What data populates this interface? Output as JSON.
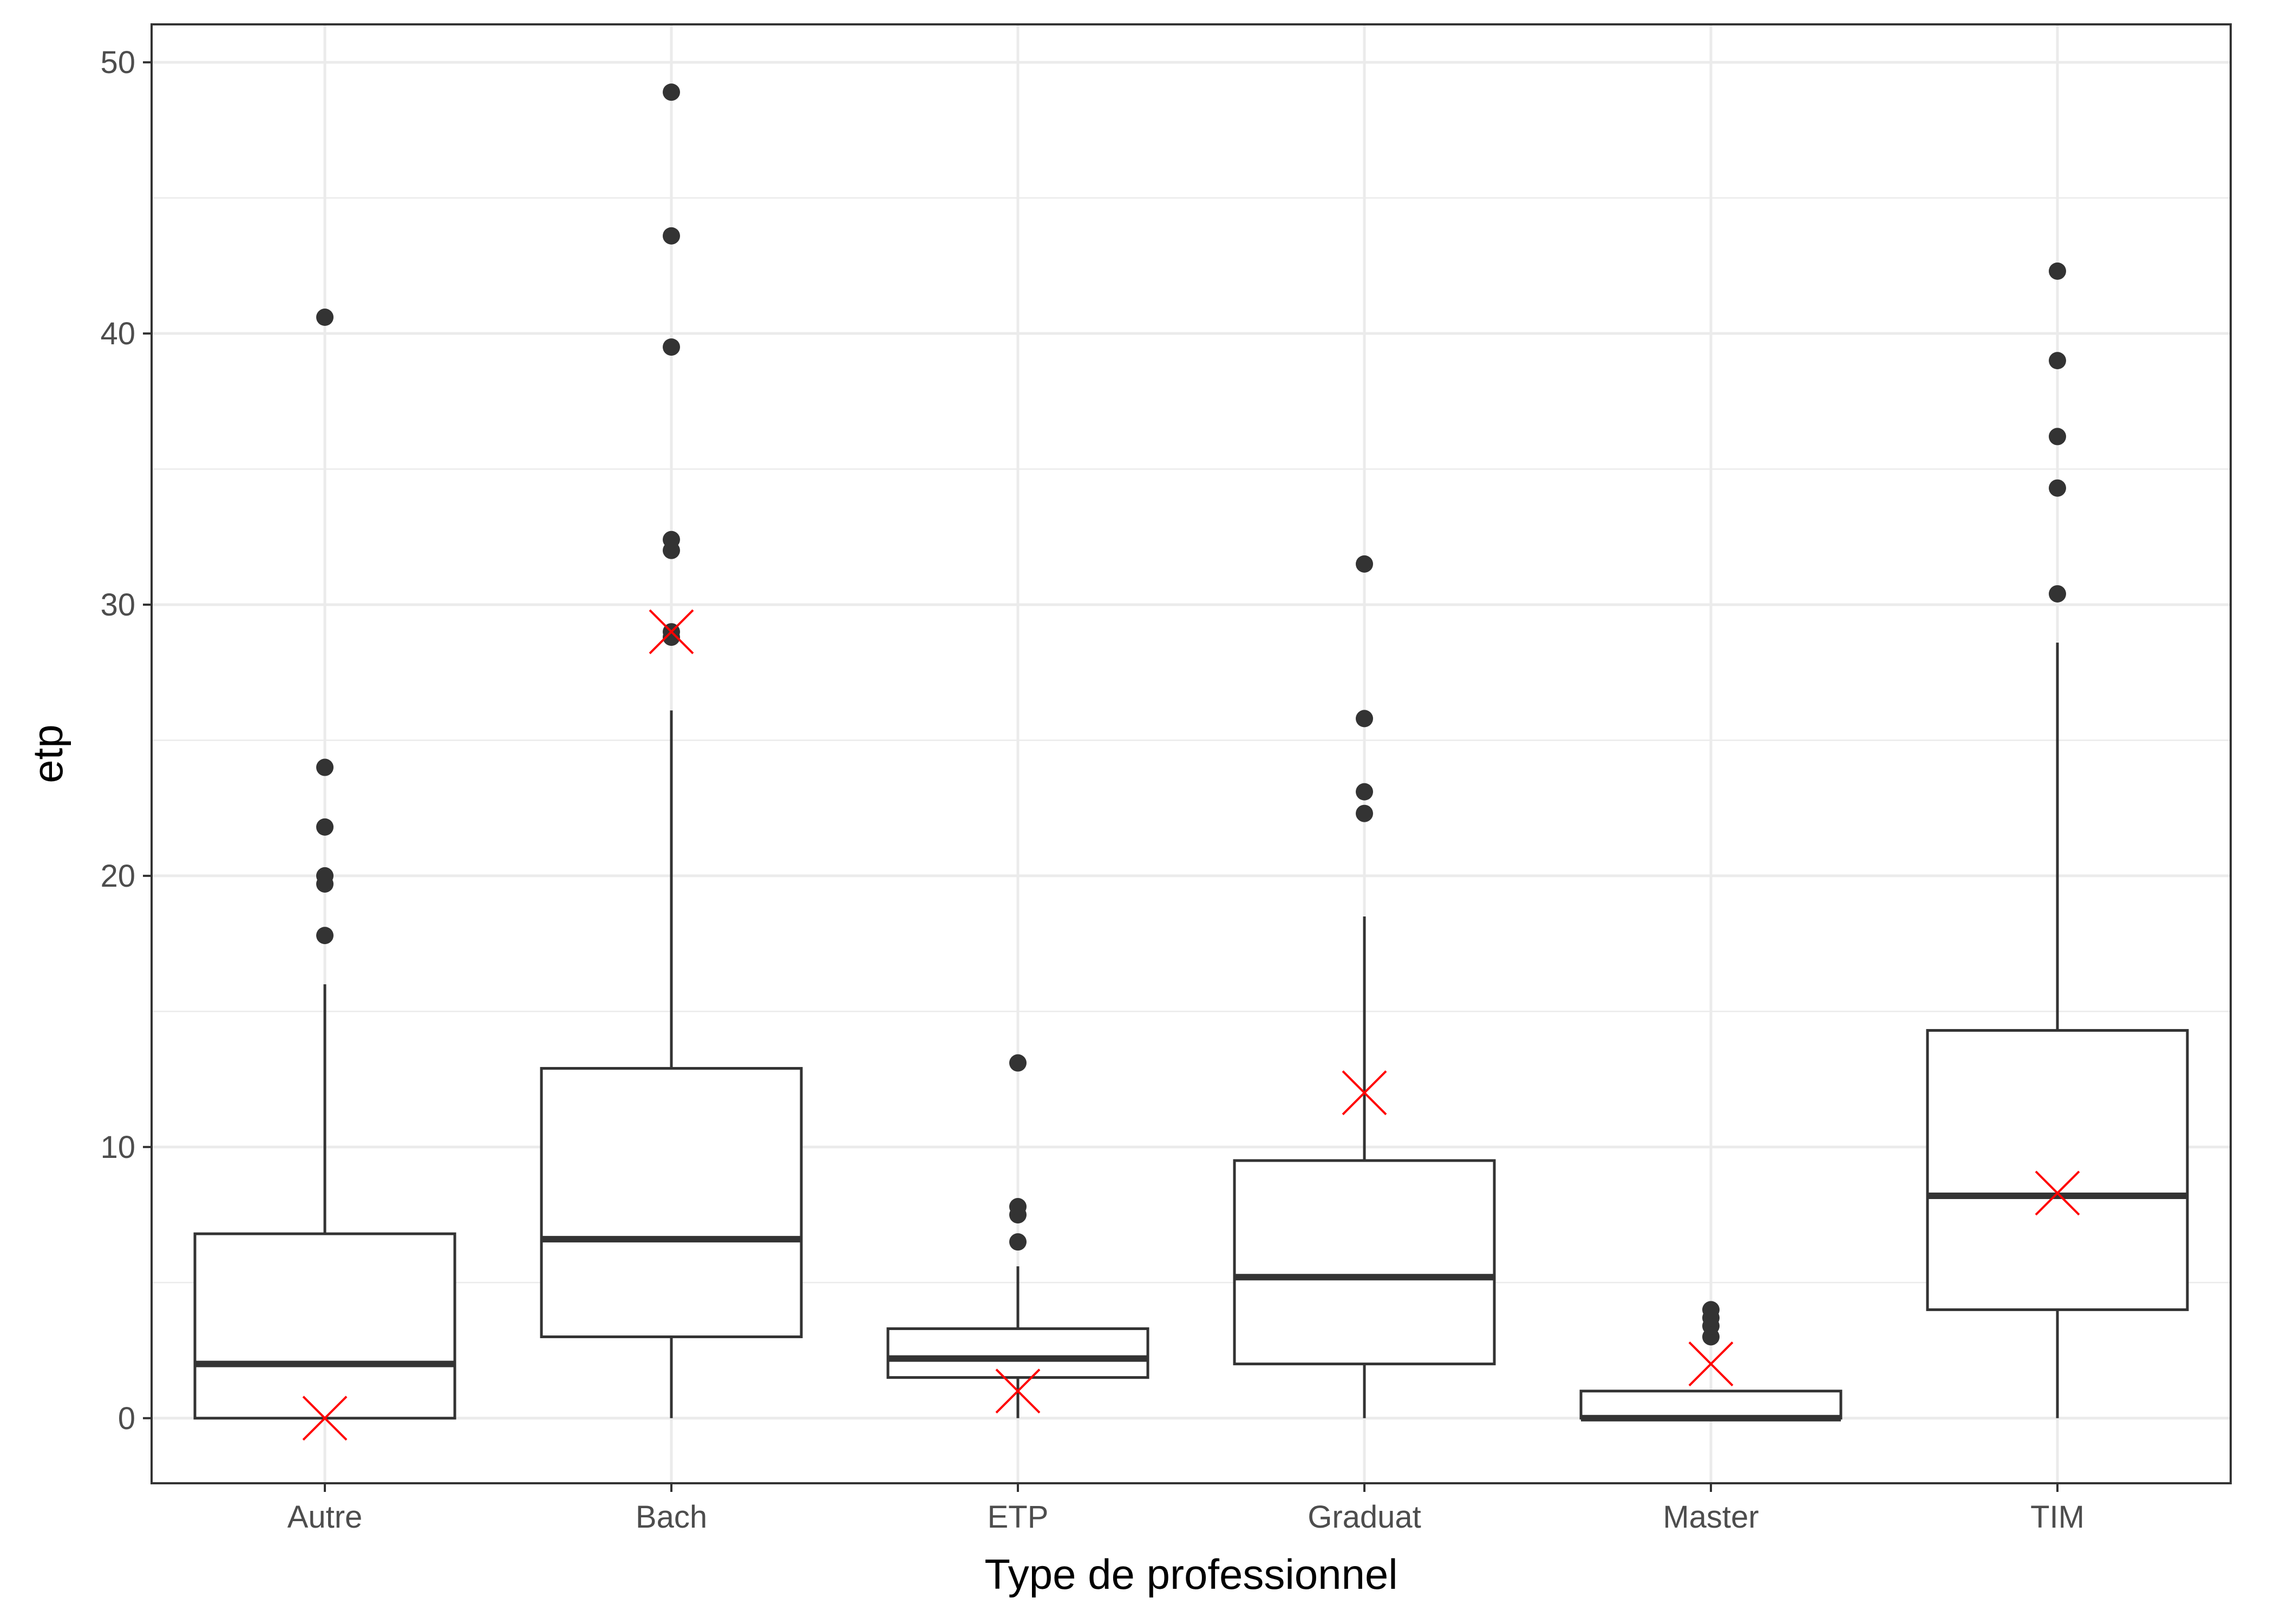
{
  "chart_data": {
    "type": "box",
    "xlabel": "Type de professionnel",
    "ylabel": "etp",
    "ylim": [
      -2.4,
      51.4
    ],
    "yticks": [
      0,
      10,
      20,
      30,
      40,
      50
    ],
    "grid": true,
    "categories": [
      "Autre",
      "Bach",
      "ETP",
      "Graduat",
      "Master",
      "TIM"
    ],
    "boxes": [
      {
        "category": "Autre",
        "whisker_low": 0,
        "q1": 0,
        "median": 2.0,
        "q3": 6.8,
        "whisker_high": 16.0,
        "outliers": [
          17.8,
          19.7,
          20.0,
          21.8,
          24.0,
          40.6
        ],
        "marker": 0
      },
      {
        "category": "Bach",
        "whisker_low": 0,
        "q1": 3.0,
        "median": 6.6,
        "q3": 12.9,
        "whisker_high": 26.1,
        "outliers": [
          28.8,
          29.0,
          32.0,
          32.4,
          39.5,
          43.6,
          48.9
        ],
        "marker": 29.0
      },
      {
        "category": "ETP",
        "whisker_low": 0,
        "q1": 1.5,
        "median": 2.2,
        "q3": 3.3,
        "whisker_high": 5.6,
        "outliers": [
          6.5,
          7.5,
          7.8,
          13.1
        ],
        "marker": 1.0
      },
      {
        "category": "Graduat",
        "whisker_low": 0,
        "q1": 2.0,
        "median": 5.2,
        "q3": 9.5,
        "whisker_high": 18.5,
        "outliers": [
          22.3,
          23.1,
          25.8,
          31.5
        ],
        "marker": 12.0
      },
      {
        "category": "Master",
        "whisker_low": 0,
        "q1": 0,
        "median": 0,
        "q3": 1.0,
        "whisker_high": 1.0,
        "outliers": [
          3.0,
          3.4,
          3.7,
          4.0
        ],
        "marker": 2.0
      },
      {
        "category": "TIM",
        "whisker_low": 0,
        "q1": 4.0,
        "median": 8.2,
        "q3": 14.3,
        "whisker_high": 28.6,
        "outliers": [
          30.4,
          34.3,
          36.2,
          39.0,
          42.3
        ],
        "marker": 8.3
      }
    ],
    "colors": {
      "box_line": "#333333",
      "outlier": "#333333",
      "marker": "#ff0000",
      "grid": "#ebebeb",
      "panel_border": "#333333"
    }
  }
}
